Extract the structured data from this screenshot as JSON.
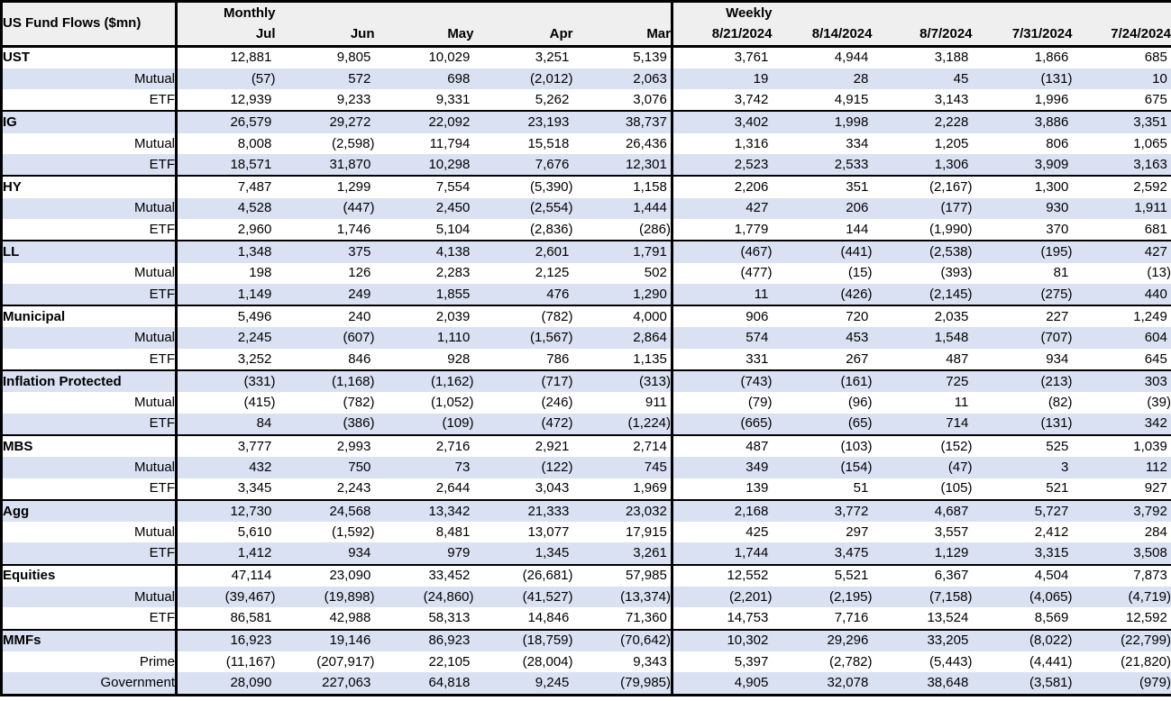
{
  "chart_data": {
    "type": "table",
    "title": "US Fund Flows ($mn)",
    "column_groups": [
      {
        "label": "Monthly",
        "columns": [
          "Jul",
          "Jun",
          "May",
          "Apr",
          "Mar"
        ]
      },
      {
        "label": "Weekly",
        "columns": [
          "8/21/2024",
          "8/14/2024",
          "8/7/2024",
          "7/31/2024",
          "7/24/2024"
        ]
      }
    ],
    "groups": [
      {
        "name": "UST",
        "rows": [
          {
            "label": "UST",
            "monthly": [
              "12,881",
              "9,805",
              "10,029",
              "3,251",
              "5,139"
            ],
            "weekly": [
              "3,761",
              "4,944",
              "3,188",
              "1,866",
              "685"
            ]
          },
          {
            "label": "Mutual",
            "monthly": [
              "(57)",
              "572",
              "698",
              "(2,012)",
              "2,063"
            ],
            "weekly": [
              "19",
              "28",
              "45",
              "(131)",
              "10"
            ]
          },
          {
            "label": "ETF",
            "monthly": [
              "12,939",
              "9,233",
              "9,331",
              "5,262",
              "3,076"
            ],
            "weekly": [
              "3,742",
              "4,915",
              "3,143",
              "1,996",
              "675"
            ]
          }
        ]
      },
      {
        "name": "IG",
        "rows": [
          {
            "label": "IG",
            "monthly": [
              "26,579",
              "29,272",
              "22,092",
              "23,193",
              "38,737"
            ],
            "weekly": [
              "3,402",
              "1,998",
              "2,228",
              "3,886",
              "3,351"
            ]
          },
          {
            "label": "Mutual",
            "monthly": [
              "8,008",
              "(2,598)",
              "11,794",
              "15,518",
              "26,436"
            ],
            "weekly": [
              "1,316",
              "334",
              "1,205",
              "806",
              "1,065"
            ]
          },
          {
            "label": "ETF",
            "monthly": [
              "18,571",
              "31,870",
              "10,298",
              "7,676",
              "12,301"
            ],
            "weekly": [
              "2,523",
              "2,533",
              "1,306",
              "3,909",
              "3,163"
            ]
          }
        ]
      },
      {
        "name": "HY",
        "rows": [
          {
            "label": "HY",
            "monthly": [
              "7,487",
              "1,299",
              "7,554",
              "(5,390)",
              "1,158"
            ],
            "weekly": [
              "2,206",
              "351",
              "(2,167)",
              "1,300",
              "2,592"
            ]
          },
          {
            "label": "Mutual",
            "monthly": [
              "4,528",
              "(447)",
              "2,450",
              "(2,554)",
              "1,444"
            ],
            "weekly": [
              "427",
              "206",
              "(177)",
              "930",
              "1,911"
            ]
          },
          {
            "label": "ETF",
            "monthly": [
              "2,960",
              "1,746",
              "5,104",
              "(2,836)",
              "(286)"
            ],
            "weekly": [
              "1,779",
              "144",
              "(1,990)",
              "370",
              "681"
            ]
          }
        ]
      },
      {
        "name": "LL",
        "rows": [
          {
            "label": "LL",
            "monthly": [
              "1,348",
              "375",
              "4,138",
              "2,601",
              "1,791"
            ],
            "weekly": [
              "(467)",
              "(441)",
              "(2,538)",
              "(195)",
              "427"
            ]
          },
          {
            "label": "Mutual",
            "monthly": [
              "198",
              "126",
              "2,283",
              "2,125",
              "502"
            ],
            "weekly": [
              "(477)",
              "(15)",
              "(393)",
              "81",
              "(13)"
            ]
          },
          {
            "label": "ETF",
            "monthly": [
              "1,149",
              "249",
              "1,855",
              "476",
              "1,290"
            ],
            "weekly": [
              "11",
              "(426)",
              "(2,145)",
              "(275)",
              "440"
            ]
          }
        ]
      },
      {
        "name": "Municipal",
        "rows": [
          {
            "label": "Municipal",
            "monthly": [
              "5,496",
              "240",
              "2,039",
              "(782)",
              "4,000"
            ],
            "weekly": [
              "906",
              "720",
              "2,035",
              "227",
              "1,249"
            ]
          },
          {
            "label": "Mutual",
            "monthly": [
              "2,245",
              "(607)",
              "1,110",
              "(1,567)",
              "2,864"
            ],
            "weekly": [
              "574",
              "453",
              "1,548",
              "(707)",
              "604"
            ]
          },
          {
            "label": "ETF",
            "monthly": [
              "3,252",
              "846",
              "928",
              "786",
              "1,135"
            ],
            "weekly": [
              "331",
              "267",
              "487",
              "934",
              "645"
            ]
          }
        ]
      },
      {
        "name": "Inflation Protected",
        "rows": [
          {
            "label": "Inflation Protected",
            "monthly": [
              "(331)",
              "(1,168)",
              "(1,162)",
              "(717)",
              "(313)"
            ],
            "weekly": [
              "(743)",
              "(161)",
              "725",
              "(213)",
              "303"
            ]
          },
          {
            "label": "Mutual",
            "monthly": [
              "(415)",
              "(782)",
              "(1,052)",
              "(246)",
              "911"
            ],
            "weekly": [
              "(79)",
              "(96)",
              "11",
              "(82)",
              "(39)"
            ]
          },
          {
            "label": "ETF",
            "monthly": [
              "84",
              "(386)",
              "(109)",
              "(472)",
              "(1,224)"
            ],
            "weekly": [
              "(665)",
              "(65)",
              "714",
              "(131)",
              "342"
            ]
          }
        ]
      },
      {
        "name": "MBS",
        "rows": [
          {
            "label": "MBS",
            "monthly": [
              "3,777",
              "2,993",
              "2,716",
              "2,921",
              "2,714"
            ],
            "weekly": [
              "487",
              "(103)",
              "(152)",
              "525",
              "1,039"
            ]
          },
          {
            "label": "Mutual",
            "monthly": [
              "432",
              "750",
              "73",
              "(122)",
              "745"
            ],
            "weekly": [
              "349",
              "(154)",
              "(47)",
              "3",
              "112"
            ]
          },
          {
            "label": "ETF",
            "monthly": [
              "3,345",
              "2,243",
              "2,644",
              "3,043",
              "1,969"
            ],
            "weekly": [
              "139",
              "51",
              "(105)",
              "521",
              "927"
            ]
          }
        ]
      },
      {
        "name": "Agg",
        "rows": [
          {
            "label": "Agg",
            "monthly": [
              "12,730",
              "24,568",
              "13,342",
              "21,333",
              "23,032"
            ],
            "weekly": [
              "2,168",
              "3,772",
              "4,687",
              "5,727",
              "3,792"
            ]
          },
          {
            "label": "Mutual",
            "monthly": [
              "5,610",
              "(1,592)",
              "8,481",
              "13,077",
              "17,915"
            ],
            "weekly": [
              "425",
              "297",
              "3,557",
              "2,412",
              "284"
            ]
          },
          {
            "label": "ETF",
            "monthly": [
              "1,412",
              "934",
              "979",
              "1,345",
              "3,261"
            ],
            "weekly": [
              "1,744",
              "3,475",
              "1,129",
              "3,315",
              "3,508"
            ]
          }
        ]
      },
      {
        "name": "Equities",
        "rows": [
          {
            "label": "Equities",
            "monthly": [
              "47,114",
              "23,090",
              "33,452",
              "(26,681)",
              "57,985"
            ],
            "weekly": [
              "12,552",
              "5,521",
              "6,367",
              "4,504",
              "7,873"
            ]
          },
          {
            "label": "Mutual",
            "monthly": [
              "(39,467)",
              "(19,898)",
              "(24,860)",
              "(41,527)",
              "(13,374)"
            ],
            "weekly": [
              "(2,201)",
              "(2,195)",
              "(7,158)",
              "(4,065)",
              "(4,719)"
            ]
          },
          {
            "label": "ETF",
            "monthly": [
              "86,581",
              "42,988",
              "58,313",
              "14,846",
              "71,360"
            ],
            "weekly": [
              "14,753",
              "7,716",
              "13,524",
              "8,569",
              "12,592"
            ]
          }
        ]
      },
      {
        "name": "MMFs",
        "rows": [
          {
            "label": "MMFs",
            "monthly": [
              "16,923",
              "19,146",
              "86,923",
              "(18,759)",
              "(70,642)"
            ],
            "weekly": [
              "10,302",
              "29,296",
              "33,205",
              "(8,022)",
              "(22,799)"
            ]
          },
          {
            "label": "Prime",
            "monthly": [
              "(11,167)",
              "(207,917)",
              "22,105",
              "(28,004)",
              "9,343"
            ],
            "weekly": [
              "5,397",
              "(2,782)",
              "(5,443)",
              "(4,441)",
              "(21,820)"
            ]
          },
          {
            "label": "Government",
            "monthly": [
              "28,090",
              "227,063",
              "64,818",
              "9,245",
              "(79,985)"
            ],
            "weekly": [
              "4,905",
              "32,078",
              "38,648",
              "(3,581)",
              "(979)"
            ]
          }
        ]
      }
    ]
  },
  "colors": {
    "band": "#d9e1f2",
    "header_bg": "#efefef",
    "border": "#000000",
    "text": "#000000"
  }
}
